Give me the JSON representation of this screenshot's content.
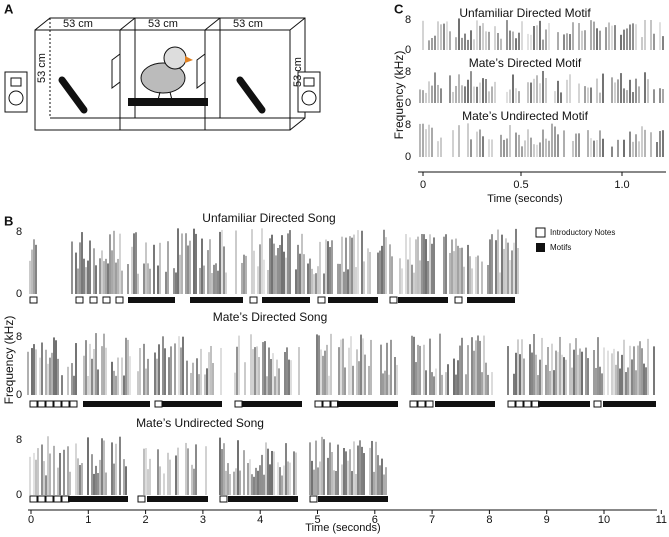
{
  "panel_a": {
    "label": "A",
    "dimensions": [
      "53 cm",
      "53 cm",
      "53 cm",
      "53 cm",
      "53 cm"
    ]
  },
  "panel_b": {
    "label": "B",
    "y_label": "Frequency (kHz)",
    "x_label": "Time (seconds)",
    "x_ticks": [
      "0",
      "1",
      "2",
      "3",
      "4",
      "5",
      "6",
      "7",
      "8",
      "9",
      "10",
      "11"
    ],
    "legend": [
      "Introductory Notes",
      "Motifs"
    ],
    "rows": [
      {
        "title": "Unfamiliar Directed Song",
        "y_ticks": [
          "8",
          "0"
        ]
      },
      {
        "title": "Mate’s Directed Song",
        "y_ticks": [
          "8",
          "0"
        ]
      },
      {
        "title": "Mate’s Undirected Song",
        "y_ticks": [
          "8",
          "0"
        ]
      }
    ]
  },
  "panel_c": {
    "label": "C",
    "y_label": "Frequency (kHz)",
    "x_label": "Time (seconds)",
    "x_ticks": [
      "0",
      "0.5",
      "1.0"
    ],
    "rows": [
      {
        "title": "Unfamiliar Directed Motif",
        "y_ticks": [
          "8",
          "0"
        ]
      },
      {
        "title": "Mate’s Directed Motif",
        "y_ticks": [
          "8",
          "0"
        ]
      },
      {
        "title": "Mate’s Undirected Motif",
        "y_ticks": [
          "8",
          "0"
        ]
      }
    ]
  }
}
